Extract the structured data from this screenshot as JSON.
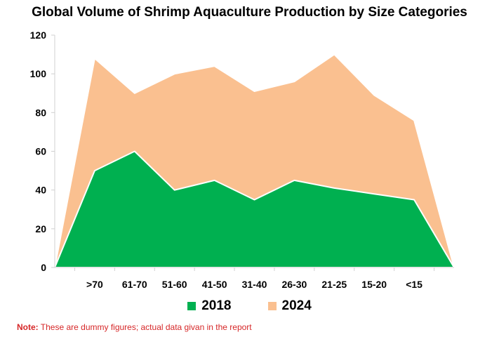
{
  "chart_data": {
    "type": "area",
    "title": "Global Volume of Shrimp Aquaculture Production by Size Categories",
    "categories": [
      ">70",
      "61-70",
      "51-60",
      "41-50",
      "31-40",
      "26-30",
      "21-25",
      "15-20",
      "<15"
    ],
    "series": [
      {
        "name": "2018",
        "color": "#00b050",
        "values": [
          50,
          60,
          40,
          45,
          35,
          45,
          41,
          38,
          35
        ]
      },
      {
        "name": "2024",
        "color": "#fac090",
        "values": [
          108,
          90,
          100,
          104,
          91,
          96,
          110,
          89,
          76
        ]
      }
    ],
    "start_value": 0,
    "end_value": 0,
    "ylim": [
      0,
      120
    ],
    "yticks": [
      0,
      20,
      40,
      60,
      80,
      100,
      120
    ],
    "grid": false,
    "legend_position": "bottom",
    "xlabel": "",
    "ylabel": ""
  },
  "note": {
    "prefix": "Note:",
    "text": " These are dummy figures; actual data givan in the report"
  }
}
